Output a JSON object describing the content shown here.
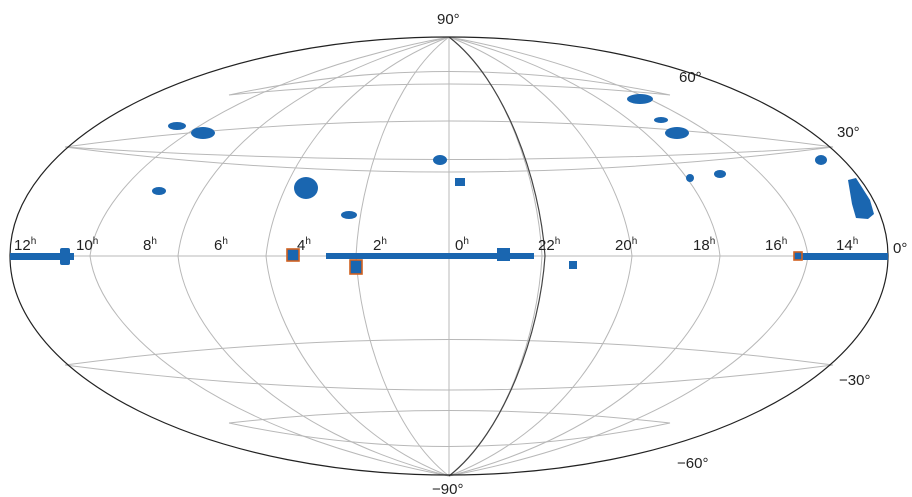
{
  "projection": "aitoff-hammer equal-area, galactic/celestial all-sky",
  "colors": {
    "survey_regions": "#1a66b0",
    "highlight_outline": "#d0601f",
    "grid": "#b8b8b8",
    "outline": "#222222"
  },
  "lat_labels": {
    "p90": "90°",
    "p60": "60°",
    "p30": "30°",
    "m30": "−30°",
    "m60": "−60°",
    "m90": "−90°"
  },
  "ra_labels": [
    {
      "num": "12",
      "sup": "h"
    },
    {
      "num": "10",
      "sup": "h"
    },
    {
      "num": "8",
      "sup": "h"
    },
    {
      "num": "6",
      "sup": "h"
    },
    {
      "num": "4",
      "sup": "h"
    },
    {
      "num": "2",
      "sup": "h"
    },
    {
      "num": "0",
      "sup": "h"
    },
    {
      "num": "22",
      "sup": "h"
    },
    {
      "num": "20",
      "sup": "h"
    },
    {
      "num": "18",
      "sup": "h"
    },
    {
      "num": "16",
      "sup": "h"
    },
    {
      "num": "14",
      "sup": "h"
    }
  ],
  "edge_label": "0°"
}
